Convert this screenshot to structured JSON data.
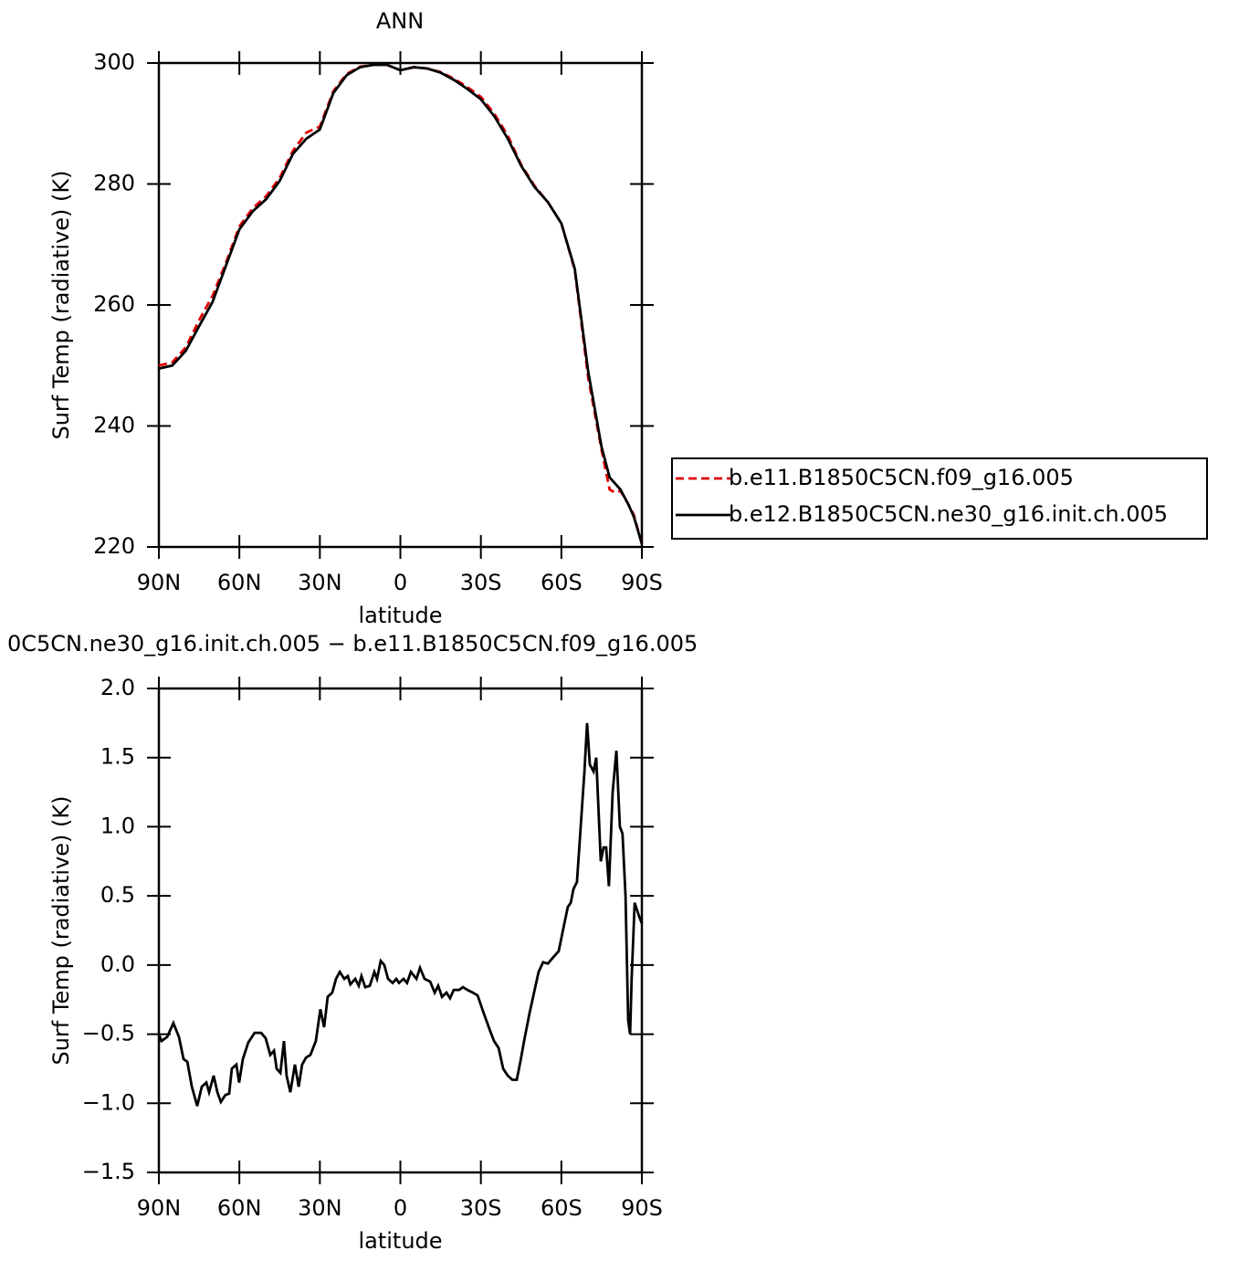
{
  "chart_data": [
    {
      "type": "line",
      "title": "ANN",
      "ylabel": "Surf Temp (radiative) (K)",
      "xlabel": "latitude",
      "x": [
        90,
        85,
        80,
        75,
        70,
        65,
        60,
        55,
        50,
        45,
        40,
        35,
        30,
        25,
        20,
        15,
        10,
        5,
        0,
        -5,
        -10,
        -15,
        -20,
        -25,
        -30,
        -35,
        -40,
        -45,
        -50,
        -55,
        -60,
        -65,
        -70,
        -75,
        -78,
        -80,
        -82,
        -85,
        -87,
        -90
      ],
      "xlim": [
        90,
        -90
      ],
      "xticks": [
        {
          "value": 90,
          "label": "90N"
        },
        {
          "value": 60,
          "label": "60N"
        },
        {
          "value": 30,
          "label": "30N"
        },
        0,
        {
          "value": -30,
          "label": "30S"
        },
        {
          "value": -60,
          "label": "60S"
        },
        {
          "value": -90,
          "label": "90S"
        }
      ],
      "ylim": [
        220,
        300
      ],
      "yticks": [
        220,
        240,
        260,
        280,
        300
      ],
      "legend": "right",
      "series": [
        {
          "name": "b.e11.B1850C5CN.f09_g16.005",
          "color": "#e00000",
          "dashed": true,
          "values": [
            250,
            250.5,
            253,
            257.5,
            261.5,
            267,
            273,
            276,
            278,
            281,
            285.5,
            288.5,
            289.5,
            295.3,
            298.2,
            299.4,
            299.7,
            299.7,
            298.8,
            299.3,
            299.1,
            298.5,
            297.4,
            296,
            294.4,
            291.6,
            288,
            283.2,
            279.7,
            277,
            273.5,
            265.8,
            248,
            236,
            229.5,
            229,
            229.3,
            227,
            225.3,
            220.5
          ]
        },
        {
          "name": "b.e12.B1850C5CN.ne30_g16.init.ch.005",
          "color": "#000000",
          "dashed": false,
          "values": [
            249.5,
            250,
            252.4,
            256.5,
            260.5,
            266.5,
            272.5,
            275.5,
            277.5,
            280.5,
            285,
            287.5,
            289,
            295,
            298,
            299.3,
            299.7,
            299.7,
            298.8,
            299.3,
            299.1,
            298.4,
            297.2,
            295.7,
            294,
            291.2,
            287.5,
            283,
            279.5,
            277,
            273.5,
            266,
            249,
            236.5,
            231.5,
            230.5,
            229.5,
            227,
            225,
            220.5
          ]
        }
      ]
    },
    {
      "type": "line",
      "title": "0C5CN.ne30_g16.init.ch.005 − b.e11.B1850C5CN.f09_g16.005",
      "ylabel": "Surf Temp (radiative) (K)",
      "xlabel": "latitude",
      "x": [
        90,
        89,
        86.9,
        84.6,
        82.5,
        80.8,
        79.4,
        77.7,
        75.7,
        74,
        72.3,
        71.3,
        69.6,
        68.2,
        66.9,
        65.2,
        63.8,
        62.8,
        61.1,
        60.1,
        58.7,
        56.7,
        54.3,
        51.9,
        50.2,
        48.5,
        47.1,
        46.1,
        44.7,
        43.4,
        42.4,
        41,
        39.3,
        37.9,
        36.6,
        35.2,
        33.5,
        31.5,
        29.8,
        28.4,
        27.1,
        25.4,
        24,
        22.6,
        20.9,
        19.6,
        18.6,
        16.8,
        15.5,
        14.5,
        13.1,
        11.4,
        9.7,
        8.7,
        7.3,
        6,
        4.6,
        2.9,
        1.5,
        0.5,
        -1.2,
        -2.5,
        -3.9,
        -6,
        -7.3,
        -9,
        -11.1,
        -12.8,
        -14.1,
        -15.5,
        -17.2,
        -18.5,
        -19.9,
        -21.9,
        -23.3,
        -25,
        -27,
        -28.8,
        -31.1,
        -33.5,
        -34.9,
        -36.6,
        -38.3,
        -40,
        -41.7,
        -43.4,
        -44.7,
        -46.1,
        -48.1,
        -49.8,
        -51.5,
        -53.2,
        -55,
        -56.7,
        -59,
        -61.1,
        -62.4,
        -63.5,
        -64.5,
        -65.8,
        -67.2,
        -68.6,
        -69.6,
        -70.6,
        -72,
        -73,
        -74.7,
        -75.7,
        -76.7,
        -77.7,
        -79.1,
        -80.5,
        -81.8,
        -82.8,
        -83.9,
        -84.9,
        -85.6,
        -86.2,
        -87.3,
        -89,
        -90
      ],
      "xlim": [
        90,
        -90
      ],
      "xticks": [
        {
          "value": 90,
          "label": "90N"
        },
        {
          "value": 60,
          "label": "60N"
        },
        {
          "value": 30,
          "label": "30N"
        },
        0,
        {
          "value": -30,
          "label": "30S"
        },
        {
          "value": -60,
          "label": "60S"
        },
        {
          "value": -90,
          "label": "90S"
        }
      ],
      "ylim": [
        -1.5,
        2
      ],
      "yticks": [
        {
          "value": -1.5,
          "label": "−1.5"
        },
        {
          "value": -1,
          "label": "−1.0"
        },
        {
          "value": -0.5,
          "label": "−0.5"
        },
        {
          "value": 0,
          "label": "0.0"
        },
        0.5,
        {
          "value": 1,
          "label": "1.0"
        },
        1.5,
        {
          "value": 2,
          "label": "2.0"
        }
      ],
      "series": [
        {
          "color": "#000000",
          "dashed": false,
          "values": [
            -0.5,
            -0.55,
            -0.52,
            -0.42,
            -0.52,
            -0.68,
            -0.7,
            -0.88,
            -1.02,
            -0.88,
            -0.85,
            -0.92,
            -0.8,
            -0.92,
            -0.99,
            -0.94,
            -0.93,
            -0.75,
            -0.72,
            -0.85,
            -0.68,
            -0.56,
            -0.49,
            -0.49,
            -0.53,
            -0.65,
            -0.62,
            -0.75,
            -0.78,
            -0.55,
            -0.8,
            -0.92,
            -0.72,
            -0.88,
            -0.72,
            -0.67,
            -0.65,
            -0.55,
            -0.32,
            -0.45,
            -0.23,
            -0.2,
            -0.1,
            -0.05,
            -0.1,
            -0.08,
            -0.14,
            -0.1,
            -0.15,
            -0.08,
            -0.16,
            -0.15,
            -0.05,
            -0.1,
            0.03,
            0,
            -0.1,
            -0.13,
            -0.1,
            -0.13,
            -0.1,
            -0.13,
            -0.05,
            -0.1,
            -0.02,
            -0.1,
            -0.12,
            -0.2,
            -0.15,
            -0.23,
            -0.2,
            -0.24,
            -0.18,
            -0.18,
            -0.16,
            -0.18,
            -0.2,
            -0.22,
            -0.35,
            -0.48,
            -0.55,
            -0.6,
            -0.75,
            -0.8,
            -0.83,
            -0.83,
            -0.7,
            -0.55,
            -0.35,
            -0.2,
            -0.05,
            0.02,
            0.01,
            0.05,
            0.1,
            0.3,
            0.42,
            0.45,
            0.55,
            0.6,
            1,
            1.4,
            1.75,
            1.45,
            1.4,
            1.5,
            0.75,
            0.85,
            0.85,
            0.57,
            1.25,
            1.55,
            1,
            0.95,
            0.5,
            -0.4,
            -0.5,
            -0.1,
            0.45,
            0.35,
            0.3
          ]
        }
      ]
    }
  ]
}
